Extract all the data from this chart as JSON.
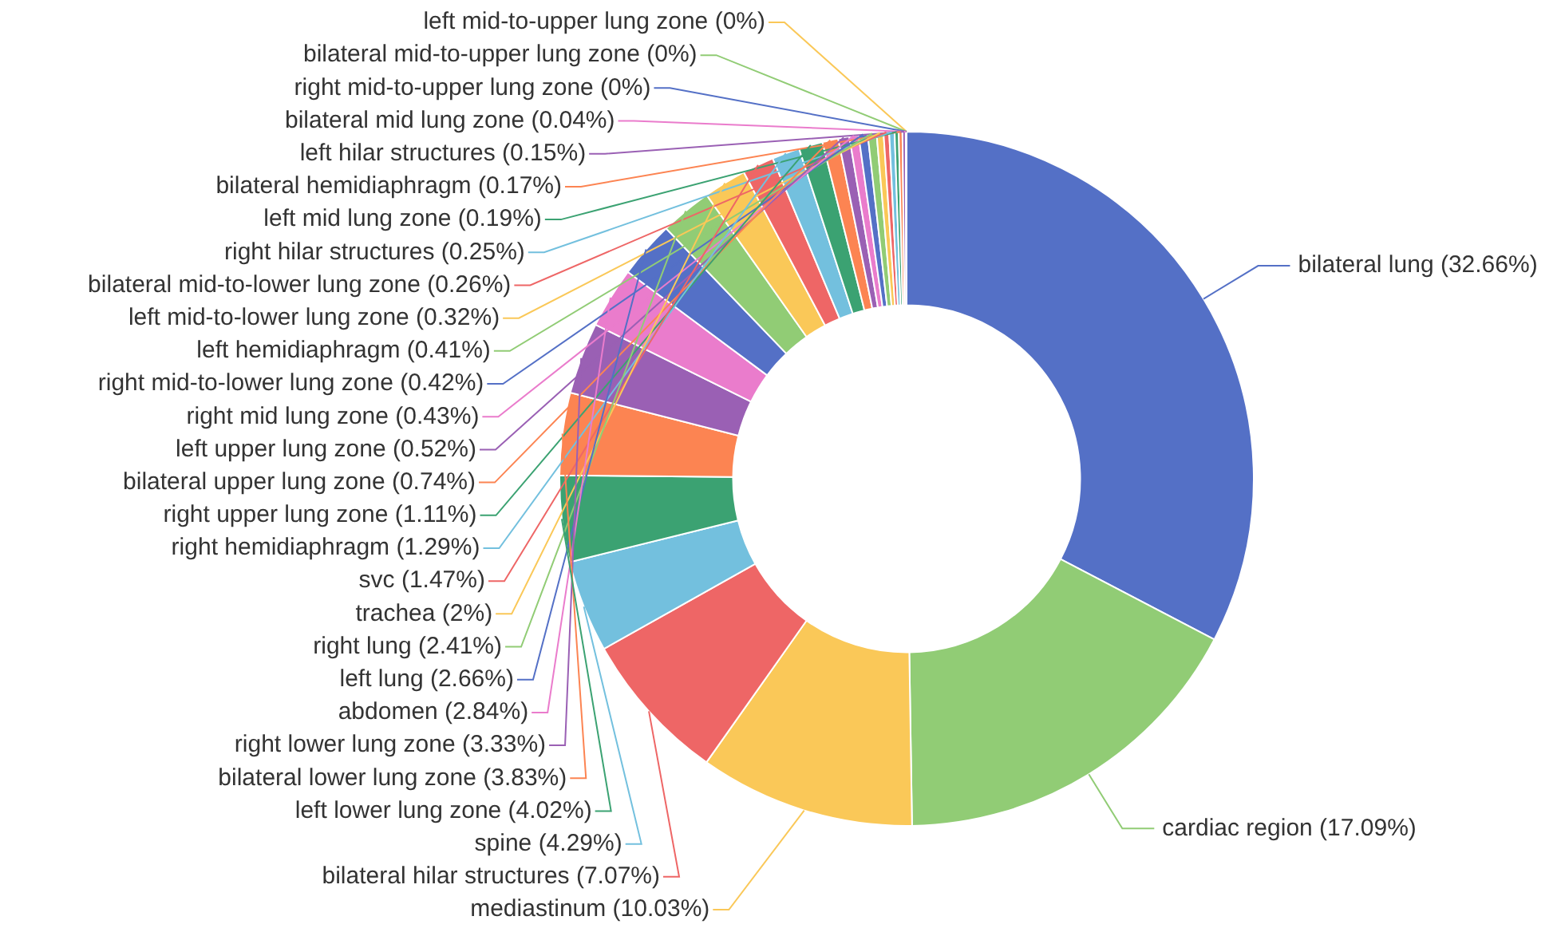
{
  "chart_data": {
    "type": "donut",
    "categories": [
      "bilateral lung",
      "cardiac region",
      "mediastinum",
      "bilateral hilar structures",
      "spine",
      "left lower lung zone",
      "bilateral lower lung zone",
      "right lower lung zone",
      "abdomen",
      "left lung",
      "right lung",
      "trachea",
      "svc",
      "right hemidiaphragm",
      "right upper lung zone",
      "bilateral upper lung zone",
      "left upper lung zone",
      "right mid lung zone",
      "right mid-to-lower lung zone",
      "left hemidiaphragm",
      "left mid-to-lower lung zone",
      "bilateral mid-to-lower lung zone",
      "right hilar structures",
      "left mid lung zone",
      "bilateral hemidiaphragm",
      "left hilar structures",
      "bilateral mid lung zone",
      "right mid-to-upper lung zone",
      "bilateral mid-to-upper lung zone",
      "left mid-to-upper lung zone"
    ],
    "values": [
      32.66,
      17.09,
      10.03,
      7.07,
      4.29,
      4.02,
      3.83,
      3.33,
      2.84,
      2.66,
      2.41,
      2,
      1.47,
      1.29,
      1.11,
      0.74,
      0.52,
      0.43,
      0.42,
      0.41,
      0.32,
      0.26,
      0.25,
      0.19,
      0.17,
      0.15,
      0.04,
      0,
      0,
      0
    ],
    "value_labels": [
      "(32.66%)",
      "(17.09%)",
      "(10.03%)",
      "(7.07%)",
      "(4.29%)",
      "(4.02%)",
      "(3.83%)",
      "(3.33%)",
      "(2.84%)",
      "(2.66%)",
      "(2.41%)",
      "(2%)",
      "(1.47%)",
      "(1.29%)",
      "(1.11%)",
      "(0.74%)",
      "(0.52%)",
      "(0.43%)",
      "(0.42%)",
      "(0.41%)",
      "(0.32%)",
      "(0.26%)",
      "(0.25%)",
      "(0.19%)",
      "(0.17%)",
      "(0.15%)",
      "(0.04%)",
      "(0%)",
      "(0%)",
      "(0%)"
    ],
    "colors": [
      "#5470c6",
      "#91cc75",
      "#fac858",
      "#ee6666",
      "#73c0de",
      "#3ba272",
      "#fc8452",
      "#9a60b4",
      "#ea7ccc",
      "#5470c6",
      "#91cc75",
      "#fac858",
      "#ee6666",
      "#73c0de",
      "#3ba272",
      "#fc8452",
      "#9a60b4",
      "#ea7ccc",
      "#5470c6",
      "#91cc75",
      "#fac858",
      "#ee6666",
      "#73c0de",
      "#3ba272",
      "#fc8452",
      "#9a60b4",
      "#ea7ccc",
      "#5470c6",
      "#91cc75",
      "#fac858"
    ],
    "legend": false
  }
}
